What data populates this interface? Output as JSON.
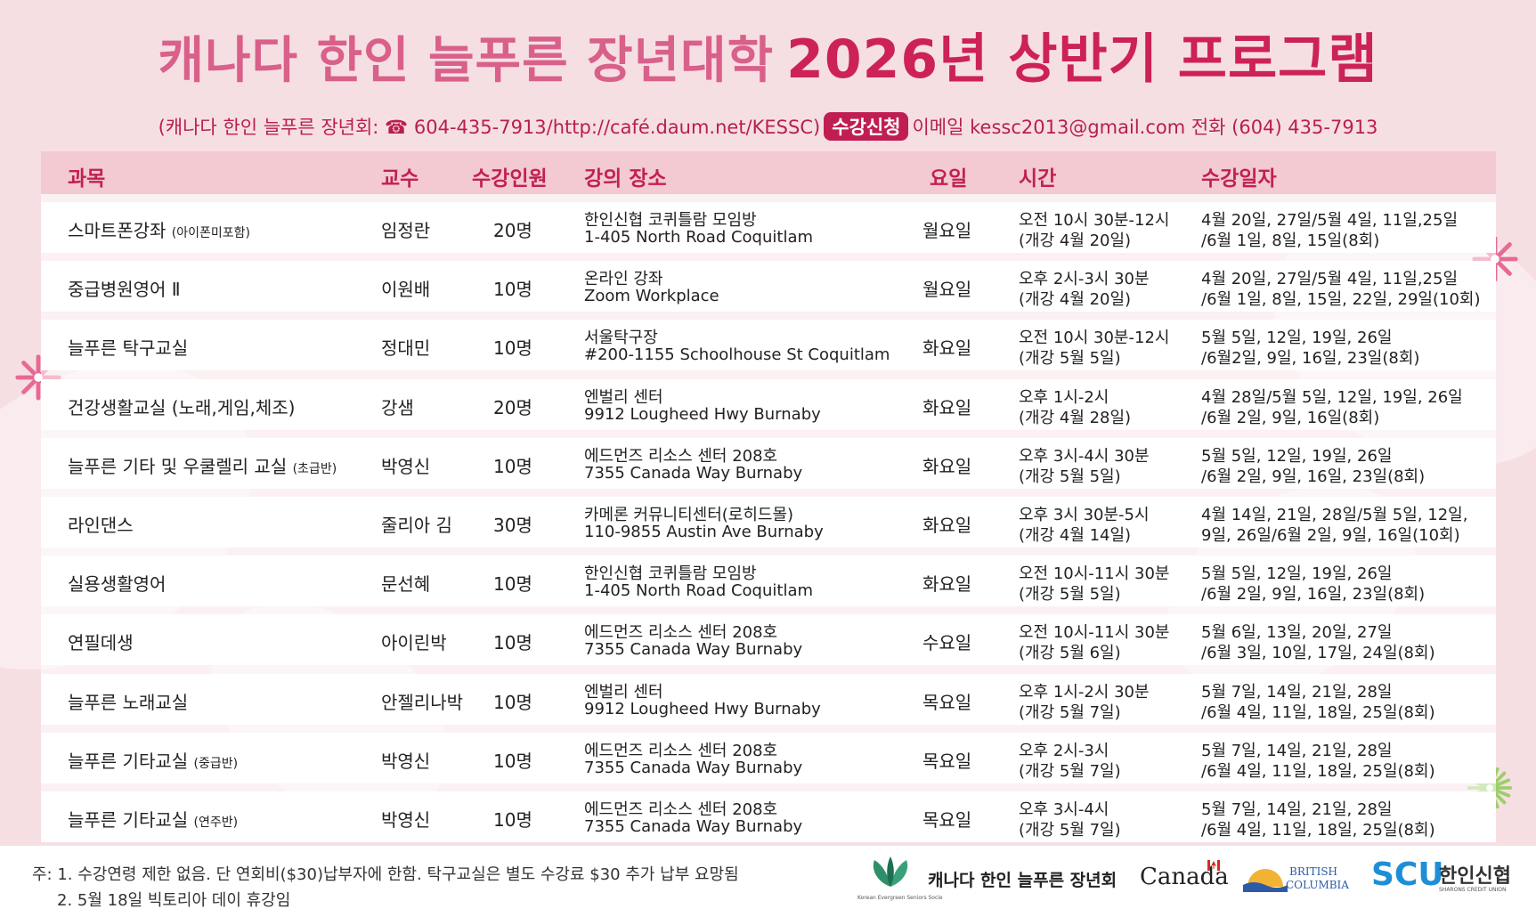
{
  "header": {
    "title_part1": "캐나다 한인 늘푸른 장년대학",
    "title_part2": "2026년 상반기 프로그램",
    "contact_left": "(캐나다 한인 늘푸른 장년회: ☎ 604-435-7913/http://café.daum.net/KESSC)",
    "badge": "수강신청",
    "contact_right": "이메일 kessc2013@gmail.com 전화 (604) 435-7913"
  },
  "table": {
    "columns": [
      "과목",
      "교수",
      "수강인원",
      "강의 장소",
      "요일",
      "시간",
      "수강일자"
    ],
    "rows": [
      {
        "subject": "스마트폰강좌",
        "subject_note": "(아이폰미포함)",
        "professor": "임정란",
        "count": "20명",
        "location1": "한인신협 코퀴틀람 모임방",
        "location2": "1-405 North Road Coquitlam",
        "day": "월요일",
        "time1": "오전 10시 30분-12시",
        "time2": "(개강 4월 20일)",
        "dates1": "4월 20일, 27일/5월 4일, 11일,25일",
        "dates2": "/6월 1일, 8일, 15일(8회)"
      },
      {
        "subject": "중급병원영어 Ⅱ",
        "subject_note": "",
        "professor": "이원배",
        "count": "10명",
        "location1": "온라인 강좌",
        "location2": "Zoom Workplace",
        "day": "월요일",
        "time1": "오후 2시-3시 30분",
        "time2": "(개강 4월 20일)",
        "dates1": "4월 20일, 27일/5월 4일, 11일,25일",
        "dates2": "/6월 1일, 8일, 15일, 22일, 29일(10회)"
      },
      {
        "subject": "늘푸른 탁구교실",
        "subject_note": "",
        "professor": "정대민",
        "count": "10명",
        "location1": "서울탁구장",
        "location2": "#200-1155 Schoolhouse St Coquitlam",
        "day": "화요일",
        "time1": "오전 10시 30분-12시",
        "time2": "(개강 5월 5일)",
        "dates1": "5월 5일, 12일, 19일, 26일",
        "dates2": "/6월2일, 9일, 16일, 23일(8회)"
      },
      {
        "subject": "건강생활교실 (노래,게임,체조)",
        "subject_note": "",
        "professor": "강샘",
        "count": "20명",
        "location1": "엔벌리 센터",
        "location2": "9912 Lougheed Hwy Burnaby",
        "day": "화요일",
        "time1": "오후 1시-2시",
        "time2": "(개강 4월 28일)",
        "dates1": "4월 28일/5월 5일, 12일, 19일, 26일",
        "dates2": "/6월 2일, 9일, 16일(8회)"
      },
      {
        "subject": "늘푸른 기타 및 우쿨렐리 교실",
        "subject_note": "(초급반)",
        "professor": "박영신",
        "count": "10명",
        "location1": "에드먼즈 리소스 센터 208호",
        "location2": "7355 Canada Way Burnaby",
        "day": "화요일",
        "time1": "오후 3시-4시 30분",
        "time2": "(개강 5월 5일)",
        "dates1": "5월 5일, 12일, 19일, 26일",
        "dates2": "/6월 2일, 9일, 16일, 23일(8회)"
      },
      {
        "subject": "라인댄스",
        "subject_note": "",
        "professor": "줄리아 김",
        "count": "30명",
        "location1": "카메론 커뮤니티센터(로히드몰)",
        "location2": "110-9855 Austin Ave Burnaby",
        "day": "화요일",
        "time1": "오후 3시 30분-5시",
        "time2": "(개강 4월 14일)",
        "dates1": "4월 14일, 21일, 28일/5월 5일, 12일,",
        "dates2": "9일, 26일/6월 2일, 9일, 16일(10회)"
      },
      {
        "subject": "실용생활영어",
        "subject_note": "",
        "professor": "문선혜",
        "count": "10명",
        "location1": "한인신협 코퀴틀람 모임방",
        "location2": "1-405 North Road Coquitlam",
        "day": "화요일",
        "time1": "오전 10시-11시 30분",
        "time2": "(개강 5월 5일)",
        "dates1": "5월 5일, 12일, 19일, 26일",
        "dates2": "/6월 2일, 9일, 16일, 23일(8회)"
      },
      {
        "subject": "연필데생",
        "subject_note": "",
        "professor": "아이린박",
        "count": "10명",
        "location1": "에드먼즈 리소스 센터 208호",
        "location2": "7355 Canada Way Burnaby",
        "day": "수요일",
        "time1": "오전 10시-11시 30분",
        "time2": "(개강 5월 6일)",
        "dates1": "5월 6일, 13일, 20일, 27일",
        "dates2": "/6월 3일, 10일, 17일, 24일(8회)"
      },
      {
        "subject": "늘푸른 노래교실",
        "subject_note": "",
        "professor": "안젤리나박",
        "count": "10명",
        "location1": "엔벌리 센터",
        "location2": "9912 Lougheed Hwy Burnaby",
        "day": "목요일",
        "time1": "오후 1시-2시 30분",
        "time2": "(개강 5월 7일)",
        "dates1": "5월 7일, 14일, 21일, 28일",
        "dates2": "/6월 4일, 11일, 18일, 25일(8회)"
      },
      {
        "subject": "늘푸른 기타교실",
        "subject_note": "(중급반)",
        "professor": "박영신",
        "count": "10명",
        "location1": "에드먼즈 리소스 센터 208호",
        "location2": "7355 Canada Way Burnaby",
        "day": "목요일",
        "time1": "오후 2시-3시",
        "time2": "(개강 5월 7일)",
        "dates1": "5월 7일, 14일, 21일, 28일",
        "dates2": "/6월 4일, 11일, 18일, 25일(8회)"
      },
      {
        "subject": "늘푸른 기타교실",
        "subject_note": "(연주반)",
        "professor": "박영신",
        "count": "10명",
        "location1": "에드먼즈 리소스 센터 208호",
        "location2": "7355 Canada Way Burnaby",
        "day": "목요일",
        "time1": "오후 3시-4시",
        "time2": "(개강 5월 7일)",
        "dates1": "5월 7일, 14일, 21일, 28일",
        "dates2": "/6월 4일, 11일, 18일, 25일(8회)"
      }
    ]
  },
  "footer": {
    "note1": "주: 1. 수강연령 제한 없음. 단 연회비($30)납부자에 한함.  탁구교실은 별도 수강료 $30 추가 납부 요망됨",
    "note2": "2. 5월 18일 빅토리아 데이 휴강임",
    "logo_kessc_small": "Korean Evergreen Seniors Socie",
    "logo_kessc": "캐나다 한인 늘푸른 장년회",
    "logo_canada": "Canada",
    "logo_bc1": "BRITISH",
    "logo_bc2": "COLUMBIA",
    "logo_scu": "SCU",
    "logo_scu_kr": "한인신협",
    "logo_scu_small": "SHARONS CREDIT UNION"
  },
  "colors": {
    "title_light": "#d9608a",
    "title_dark": "#cc2257",
    "accent": "#c01e52",
    "header_row": "#f3c9d2",
    "background": "#f6dfe3"
  }
}
